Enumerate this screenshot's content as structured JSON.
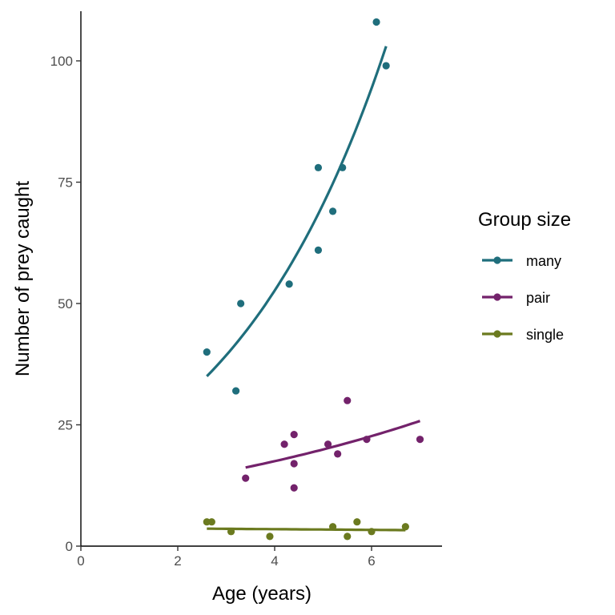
{
  "chart_data": {
    "type": "scatter",
    "xlabel": "Age (years)",
    "ylabel": "Number of prey caught",
    "xlim": [
      0,
      7.5
    ],
    "ylim": [
      0,
      110
    ],
    "x_ticks": [
      0,
      2,
      4,
      6
    ],
    "y_ticks": [
      0,
      25,
      50,
      75,
      100
    ],
    "grid": false,
    "legend": {
      "title": "Group size",
      "placement": "right"
    },
    "series": [
      {
        "name": "many",
        "color": "#1f6e7c",
        "points": [
          {
            "x": 2.6,
            "y": 40
          },
          {
            "x": 3.2,
            "y": 32
          },
          {
            "x": 3.3,
            "y": 50
          },
          {
            "x": 4.3,
            "y": 54
          },
          {
            "x": 4.9,
            "y": 61
          },
          {
            "x": 4.9,
            "y": 78
          },
          {
            "x": 5.2,
            "y": 69
          },
          {
            "x": 5.4,
            "y": 78
          },
          {
            "x": 6.1,
            "y": 108
          },
          {
            "x": 6.3,
            "y": 99
          }
        ],
        "trend": {
          "x_from": 2.6,
          "x_to": 6.3,
          "y_start": 35,
          "y_end": 103
        }
      },
      {
        "name": "pair",
        "color": "#73226b",
        "points": [
          {
            "x": 3.4,
            "y": 14
          },
          {
            "x": 4.2,
            "y": 21
          },
          {
            "x": 4.4,
            "y": 23
          },
          {
            "x": 4.4,
            "y": 17
          },
          {
            "x": 4.4,
            "y": 12
          },
          {
            "x": 5.1,
            "y": 21
          },
          {
            "x": 5.3,
            "y": 19
          },
          {
            "x": 5.5,
            "y": 30
          },
          {
            "x": 5.9,
            "y": 22
          },
          {
            "x": 7.0,
            "y": 22
          }
        ],
        "trend": {
          "x_from": 3.4,
          "x_to": 7.0,
          "y_start": 16.2,
          "y_end": 25.8
        }
      },
      {
        "name": "single",
        "color": "#6b7a1f",
        "points": [
          {
            "x": 2.6,
            "y": 5
          },
          {
            "x": 2.7,
            "y": 5
          },
          {
            "x": 3.1,
            "y": 3
          },
          {
            "x": 3.9,
            "y": 2
          },
          {
            "x": 5.2,
            "y": 4
          },
          {
            "x": 5.5,
            "y": 2
          },
          {
            "x": 5.7,
            "y": 5
          },
          {
            "x": 6.0,
            "y": 3
          },
          {
            "x": 6.7,
            "y": 4
          }
        ],
        "trend": {
          "x_from": 2.6,
          "x_to": 6.7,
          "y_start": 3.6,
          "y_end": 3.3
        }
      }
    ]
  }
}
